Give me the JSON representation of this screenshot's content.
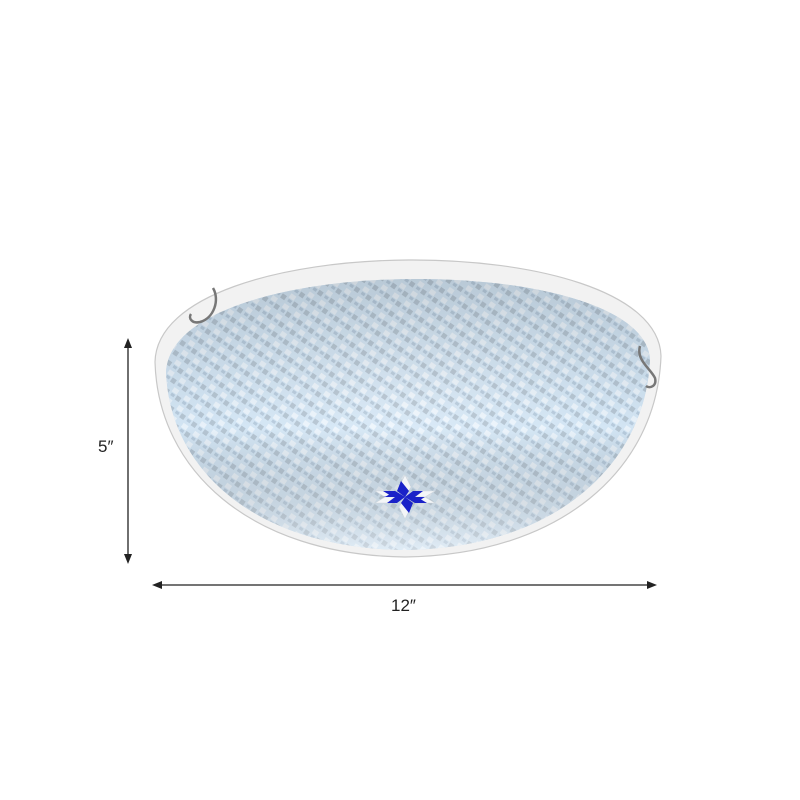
{
  "product": {
    "description_visible": "",
    "accent_color": "#1a22c8",
    "glass_color": "#cfe3f3"
  },
  "dimensions": {
    "height_label": "5″",
    "width_label": "12″"
  }
}
